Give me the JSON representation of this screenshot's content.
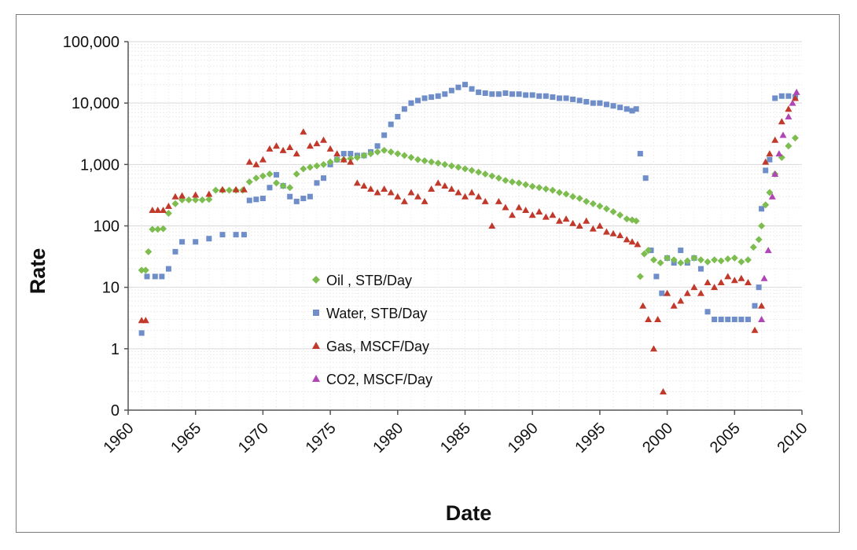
{
  "chart_data": {
    "type": "scatter",
    "title": "",
    "xlabel": "Date",
    "ylabel": "Rate",
    "yscale": "log",
    "xlim": [
      1960,
      2010
    ],
    "ylim": [
      0.1,
      100000
    ],
    "x_ticks": [
      "1960",
      "1965",
      "1970",
      "1975",
      "1980",
      "1985",
      "1990",
      "1995",
      "2000",
      "2005",
      "2010"
    ],
    "y_ticks": [
      {
        "value": 0.1,
        "label": "0"
      },
      {
        "value": 1,
        "label": "1"
      },
      {
        "value": 10,
        "label": "10"
      },
      {
        "value": 100,
        "label": "100"
      },
      {
        "value": 1000,
        "label": "1,000"
      },
      {
        "value": 10000,
        "label": "10,000"
      },
      {
        "value": 100000,
        "label": "100,000"
      }
    ],
    "grid": true,
    "legend_position": "center-left",
    "series": [
      {
        "name": "Oil , STB/Day",
        "color": "#7dbd4f",
        "marker": "diamond",
        "x": [
          1961.0,
          1961.3,
          1961.5,
          1961.8,
          1962.2,
          1962.6,
          1963.0,
          1963.5,
          1964.0,
          1964.5,
          1965.0,
          1965.5,
          1966.0,
          1966.5,
          1967.0,
          1967.5,
          1968.0,
          1968.5,
          1969.0,
          1969.5,
          1970.0,
          1970.5,
          1971.0,
          1971.5,
          1972.0,
          1972.5,
          1973.0,
          1973.5,
          1974.0,
          1974.5,
          1975.0,
          1975.5,
          1976.0,
          1976.5,
          1977.0,
          1977.5,
          1978.0,
          1978.5,
          1979.0,
          1979.5,
          1980.0,
          1980.5,
          1981.0,
          1981.5,
          1982.0,
          1982.5,
          1983.0,
          1983.5,
          1984.0,
          1984.5,
          1985.0,
          1985.5,
          1986.0,
          1986.5,
          1987.0,
          1987.5,
          1988.0,
          1988.5,
          1989.0,
          1989.5,
          1990.0,
          1990.5,
          1991.0,
          1991.5,
          1992.0,
          1992.5,
          1993.0,
          1993.5,
          1994.0,
          1994.5,
          1995.0,
          1995.5,
          1996.0,
          1996.5,
          1997.0,
          1997.4,
          1997.7,
          1998.0,
          1998.3,
          1998.6,
          1999.0,
          1999.5,
          2000.0,
          2000.5,
          2001.0,
          2001.5,
          2002.0,
          2002.5,
          2003.0,
          2003.5,
          2004.0,
          2004.5,
          2005.0,
          2005.5,
          2006.0,
          2006.4,
          2006.8,
          2007.0,
          2007.3,
          2007.6,
          2008.0,
          2008.5,
          2009.0,
          2009.5
        ],
        "y": [
          19,
          19,
          38,
          88,
          88,
          90,
          160,
          230,
          265,
          265,
          265,
          265,
          270,
          380,
          380,
          380,
          380,
          380,
          520,
          600,
          650,
          700,
          500,
          450,
          420,
          700,
          850,
          900,
          950,
          1000,
          1100,
          1200,
          1200,
          1250,
          1300,
          1400,
          1500,
          1600,
          1700,
          1600,
          1500,
          1400,
          1300,
          1200,
          1150,
          1100,
          1050,
          1000,
          950,
          900,
          850,
          800,
          750,
          700,
          650,
          600,
          550,
          520,
          500,
          470,
          440,
          420,
          400,
          380,
          350,
          330,
          300,
          280,
          250,
          230,
          210,
          190,
          170,
          150,
          130,
          125,
          120,
          15,
          35,
          40,
          28,
          25,
          30,
          28,
          25,
          27,
          30,
          28,
          26,
          28,
          27,
          29,
          30,
          26,
          28,
          45,
          60,
          100,
          220,
          350,
          700,
          1300,
          2000,
          2700
        ]
      },
      {
        "name": "Water, STB/Day",
        "color": "#6f8ec9",
        "marker": "square",
        "x": [
          1961.0,
          1961.4,
          1962.0,
          1962.5,
          1963.0,
          1963.5,
          1964.0,
          1965.0,
          1966.0,
          1967.0,
          1968.0,
          1968.6,
          1969.0,
          1969.5,
          1970.0,
          1970.5,
          1971.0,
          1971.5,
          1972.0,
          1972.5,
          1973.0,
          1973.5,
          1974.0,
          1974.5,
          1975.0,
          1975.5,
          1976.0,
          1976.5,
          1977.0,
          1977.5,
          1978.0,
          1978.5,
          1979.0,
          1979.5,
          1980.0,
          1980.5,
          1981.0,
          1981.5,
          1982.0,
          1982.5,
          1983.0,
          1983.5,
          1984.0,
          1984.5,
          1985.0,
          1985.5,
          1986.0,
          1986.5,
          1987.0,
          1987.5,
          1988.0,
          1988.5,
          1989.0,
          1989.5,
          1990.0,
          1990.5,
          1991.0,
          1991.5,
          1992.0,
          1992.5,
          1993.0,
          1993.5,
          1994.0,
          1994.5,
          1995.0,
          1995.5,
          1996.0,
          1996.5,
          1997.0,
          1997.4,
          1997.7,
          1998.0,
          1998.4,
          1998.8,
          1999.2,
          1999.6,
          2000.0,
          2000.5,
          2001.0,
          2001.5,
          2002.0,
          2002.5,
          2003.0,
          2003.5,
          2004.0,
          2004.5,
          2005.0,
          2005.5,
          2006.0,
          2006.5,
          2006.8,
          2007.0,
          2007.3,
          2007.6,
          2008.0,
          2008.5,
          2009.0,
          2009.5
        ],
        "y": [
          1.8,
          15,
          15,
          15,
          20,
          38,
          55,
          55,
          62,
          72,
          72,
          72,
          260,
          270,
          280,
          420,
          680,
          450,
          300,
          250,
          280,
          300,
          500,
          600,
          1000,
          1200,
          1500,
          1500,
          1400,
          1400,
          1600,
          2000,
          3000,
          4500,
          6000,
          8000,
          10000,
          11000,
          12000,
          12500,
          13000,
          14000,
          16000,
          18000,
          20000,
          17000,
          15000,
          14500,
          14000,
          14000,
          14500,
          14000,
          14000,
          13500,
          13500,
          13000,
          13000,
          12500,
          12000,
          12000,
          11500,
          11000,
          10500,
          10000,
          10000,
          9500,
          9000,
          8500,
          8000,
          7500,
          8000,
          1500,
          600,
          40,
          15,
          8,
          30,
          25,
          40,
          25,
          30,
          20,
          4,
          3,
          3,
          3,
          3,
          3,
          3,
          5,
          10,
          190,
          800,
          1200,
          12000,
          13000,
          13000,
          12500
        ]
      },
      {
        "name": "Gas, MSCF/Day",
        "color": "#c0392b",
        "marker": "triangle",
        "x": [
          1961.0,
          1961.3,
          1961.8,
          1962.2,
          1962.6,
          1963.0,
          1963.5,
          1964.0,
          1965.0,
          1966.0,
          1967.0,
          1968.0,
          1968.6,
          1969.0,
          1969.5,
          1970.0,
          1970.5,
          1971.0,
          1971.5,
          1972.0,
          1972.5,
          1973.0,
          1973.5,
          1974.0,
          1974.5,
          1975.0,
          1975.5,
          1976.0,
          1976.5,
          1977.0,
          1977.5,
          1978.0,
          1978.5,
          1979.0,
          1979.5,
          1980.0,
          1980.5,
          1981.0,
          1981.5,
          1982.0,
          1982.5,
          1983.0,
          1983.5,
          1984.0,
          1984.5,
          1985.0,
          1985.5,
          1986.0,
          1986.5,
          1987.0,
          1987.5,
          1988.0,
          1988.5,
          1989.0,
          1989.5,
          1990.0,
          1990.5,
          1991.0,
          1991.5,
          1992.0,
          1992.5,
          1993.0,
          1993.5,
          1994.0,
          1994.5,
          1995.0,
          1995.5,
          1996.0,
          1996.5,
          1997.0,
          1997.4,
          1997.8,
          1998.2,
          1998.6,
          1999.0,
          1999.3,
          1999.7,
          2000.0,
          2000.5,
          2001.0,
          2001.5,
          2002.0,
          2002.5,
          2003.0,
          2003.5,
          2004.0,
          2004.5,
          2005.0,
          2005.5,
          2006.0,
          2006.5,
          2007.0,
          2007.3,
          2007.6,
          2008.0,
          2008.5,
          2009.0,
          2009.5
        ],
        "y": [
          2.9,
          2.9,
          180,
          180,
          180,
          210,
          300,
          310,
          320,
          330,
          390,
          390,
          390,
          1100,
          1000,
          1200,
          1800,
          2000,
          1700,
          1900,
          1500,
          3400,
          2000,
          2200,
          2500,
          1800,
          1500,
          1200,
          1100,
          500,
          450,
          400,
          350,
          400,
          350,
          300,
          250,
          350,
          300,
          250,
          400,
          500,
          450,
          400,
          350,
          300,
          350,
          300,
          250,
          100,
          250,
          200,
          150,
          200,
          180,
          150,
          170,
          140,
          150,
          120,
          130,
          110,
          100,
          120,
          90,
          100,
          80,
          75,
          70,
          60,
          55,
          50,
          5,
          3,
          1,
          3,
          0.2,
          8,
          5,
          6,
          8,
          10,
          8,
          12,
          10,
          12,
          15,
          13,
          14,
          12,
          2,
          5,
          1100,
          1500,
          2500,
          5000,
          8000,
          12000
        ]
      },
      {
        "name": "CO2, MSCF/Day",
        "color": "#b045b5",
        "marker": "triangle",
        "x": [
          2007.0,
          2007.2,
          2007.5,
          2007.8,
          2008.0,
          2008.3,
          2008.6,
          2009.0,
          2009.3,
          2009.6
        ],
        "y": [
          3,
          14,
          40,
          300,
          700,
          1500,
          3000,
          6000,
          10000,
          15000
        ]
      }
    ]
  }
}
